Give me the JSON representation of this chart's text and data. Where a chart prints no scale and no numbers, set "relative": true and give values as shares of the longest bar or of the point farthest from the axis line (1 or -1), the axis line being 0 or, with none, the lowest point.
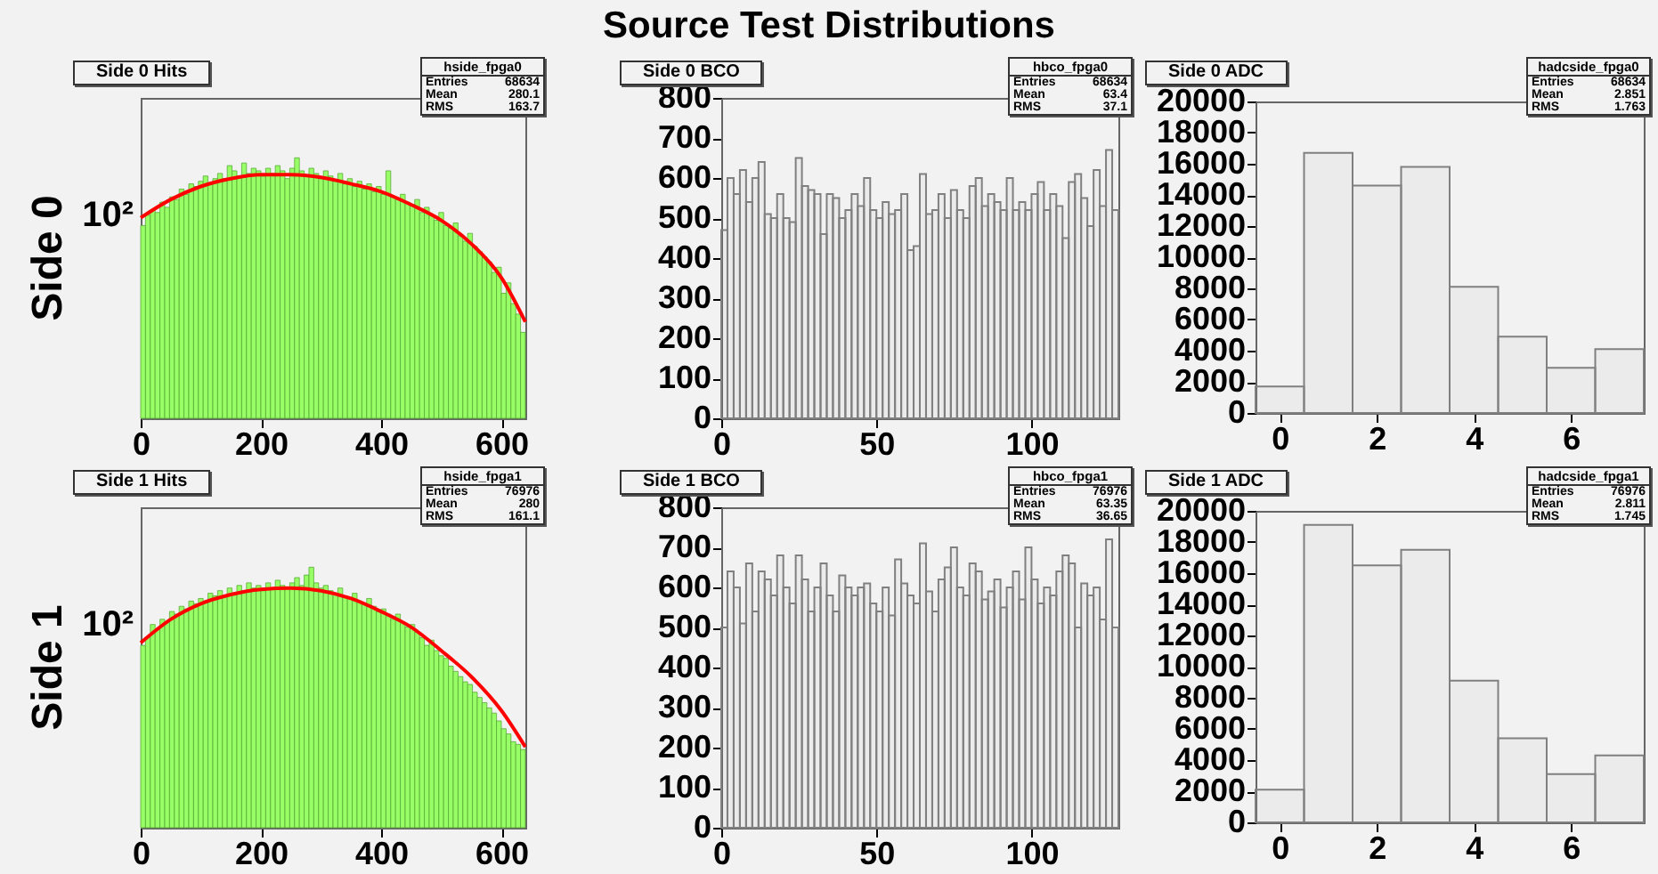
{
  "chart_data": [
    {
      "type": "other",
      "title": "Source Test Distributions"
    },
    {
      "type": "histogram",
      "title": "Side 0 Hits",
      "ylabel": "Side 0",
      "relative": true,
      "xlim": [
        0,
        640
      ],
      "xticks": [
        0,
        200,
        400,
        600
      ],
      "bins": [
        0,
        8,
        16,
        24,
        32,
        40,
        48,
        56,
        64,
        72,
        80,
        88,
        96,
        104,
        112,
        120,
        128,
        136,
        144,
        152,
        160,
        168,
        176,
        184,
        192,
        200,
        208,
        216,
        224,
        232,
        240,
        248,
        256,
        264,
        272,
        280,
        288,
        296,
        304,
        312,
        320,
        328,
        336,
        344,
        352,
        360,
        368,
        376,
        384,
        392,
        400,
        408,
        416,
        424,
        432,
        440,
        448,
        456,
        464,
        472,
        480,
        488,
        496,
        504,
        512,
        520,
        528,
        536,
        544,
        552,
        560,
        568,
        576,
        584,
        592,
        600,
        608,
        616,
        624,
        632,
        640
      ],
      "series": [
        {
          "color": "#99ff66",
          "values": [
            0.74,
            0.78,
            0.8,
            0.79,
            0.83,
            0.81,
            0.85,
            0.84,
            0.88,
            0.86,
            0.9,
            0.89,
            0.91,
            0.93,
            0.9,
            0.92,
            0.94,
            0.92,
            0.97,
            0.95,
            0.93,
            0.98,
            0.94,
            0.96,
            0.95,
            0.93,
            0.96,
            0.94,
            0.97,
            0.95,
            0.92,
            0.96,
            1,
            0.95,
            0.93,
            0.96,
            0.94,
            0.92,
            0.95,
            0.93,
            0.91,
            0.94,
            0.9,
            0.92,
            0.89,
            0.91,
            0.88,
            0.9,
            0.87,
            0.89,
            0.86,
            0.95,
            0.85,
            0.84,
            0.86,
            0.83,
            0.82,
            0.84,
            0.79,
            0.81,
            0.78,
            0.76,
            0.79,
            0.74,
            0.73,
            0.75,
            0.7,
            0.68,
            0.71,
            0.66,
            0.64,
            0.62,
            0.6,
            0.56,
            0.58,
            0.48,
            0.52,
            0.44,
            0.4,
            0.33
          ]
        },
        {
          "type": "line",
          "color": "#ff0000",
          "x": [
            0,
            50,
            100,
            150,
            200,
            250,
            300,
            350,
            400,
            450,
            500,
            550,
            600,
            640
          ],
          "values": [
            0.77,
            0.84,
            0.89,
            0.92,
            0.935,
            0.935,
            0.925,
            0.9,
            0.87,
            0.82,
            0.76,
            0.67,
            0.54,
            0.37
          ]
        }
      ],
      "annotations": [
        "10²",
        "hside_fpga0",
        "Entries",
        "68634",
        "Mean",
        "280.1",
        "RMS",
        "163.7"
      ]
    },
    {
      "type": "histogram",
      "title": "Side 0 BCO",
      "xlim": [
        0,
        128
      ],
      "xticks": [
        0,
        50,
        100
      ],
      "ylim": [
        0,
        800
      ],
      "yticks": [
        0,
        100,
        200,
        300,
        400,
        500,
        600,
        700,
        800
      ],
      "bins": [
        0,
        2,
        4,
        6,
        8,
        10,
        12,
        14,
        16,
        18,
        20,
        22,
        24,
        26,
        28,
        30,
        32,
        34,
        36,
        38,
        40,
        42,
        44,
        46,
        48,
        50,
        52,
        54,
        56,
        58,
        60,
        62,
        64,
        66,
        68,
        70,
        72,
        74,
        76,
        78,
        80,
        82,
        84,
        86,
        88,
        90,
        92,
        94,
        96,
        98,
        100,
        102,
        104,
        106,
        108,
        110,
        112,
        114,
        116,
        118,
        120,
        122,
        124,
        126,
        128
      ],
      "series": [
        {
          "color": "#808080",
          "values": [
            470,
            600,
            560,
            620,
            540,
            600,
            640,
            510,
            500,
            560,
            500,
            490,
            650,
            580,
            570,
            560,
            460,
            560,
            550,
            500,
            520,
            560,
            530,
            600,
            520,
            500,
            540,
            510,
            520,
            560,
            420,
            430,
            610,
            510,
            520,
            560,
            500,
            570,
            520,
            500,
            580,
            600,
            530,
            560,
            540,
            520,
            600,
            520,
            540,
            520,
            560,
            590,
            520,
            560,
            530,
            450,
            590,
            610,
            550,
            480,
            620,
            530,
            670,
            520
          ]
        }
      ],
      "annotations": [
        "hbco_fpga0",
        "Entries",
        "68634",
        "Mean",
        "63.4",
        "RMS",
        "37.1"
      ]
    },
    {
      "type": "histogram",
      "title": "Side 0 ADC",
      "xlim": [
        -0.5,
        7.5
      ],
      "xticks": [
        0,
        2,
        4,
        6
      ],
      "ylim": [
        0,
        20000
      ],
      "yticks": [
        0,
        2000,
        4000,
        6000,
        8000,
        10000,
        12000,
        14000,
        16000,
        18000,
        20000
      ],
      "bins": [
        -0.5,
        0.5,
        1.5,
        2.5,
        3.5,
        4.5,
        5.5,
        6.5,
        7.5
      ],
      "series": [
        {
          "color": "#808080",
          "values": [
            1700,
            16700,
            14600,
            15800,
            8100,
            4900,
            2900,
            4100
          ]
        }
      ],
      "annotations": [
        "hadcside_fpga0",
        "Entries",
        "68634",
        "Mean",
        "2.851",
        "RMS",
        "1.763"
      ]
    },
    {
      "type": "histogram",
      "title": "Side 1 Hits",
      "ylabel": "Side 1",
      "relative": true,
      "xlim": [
        0,
        640
      ],
      "xticks": [
        0,
        200,
        400,
        600
      ],
      "bins": [
        0,
        8,
        16,
        24,
        32,
        40,
        48,
        56,
        64,
        72,
        80,
        88,
        96,
        104,
        112,
        120,
        128,
        136,
        144,
        152,
        160,
        168,
        176,
        184,
        192,
        200,
        208,
        216,
        224,
        232,
        240,
        248,
        256,
        264,
        272,
        280,
        288,
        296,
        304,
        312,
        320,
        328,
        336,
        344,
        352,
        360,
        368,
        376,
        384,
        392,
        400,
        408,
        416,
        424,
        432,
        440,
        448,
        456,
        464,
        472,
        480,
        488,
        496,
        504,
        512,
        520,
        528,
        536,
        544,
        552,
        560,
        568,
        576,
        584,
        592,
        600,
        608,
        616,
        624,
        632,
        640
      ],
      "series": [
        {
          "color": "#99ff66",
          "values": [
            0.7,
            0.73,
            0.78,
            0.76,
            0.8,
            0.79,
            0.83,
            0.82,
            0.85,
            0.84,
            0.87,
            0.86,
            0.88,
            0.87,
            0.9,
            0.89,
            0.91,
            0.89,
            0.92,
            0.9,
            0.93,
            0.91,
            0.94,
            0.92,
            0.93,
            0.91,
            0.94,
            0.92,
            0.95,
            0.93,
            0.92,
            0.94,
            0.96,
            0.93,
            0.97,
            1,
            0.94,
            0.92,
            0.93,
            0.91,
            0.9,
            0.92,
            0.89,
            0.88,
            0.9,
            0.87,
            0.86,
            0.88,
            0.85,
            0.83,
            0.84,
            0.82,
            0.8,
            0.82,
            0.79,
            0.77,
            0.78,
            0.75,
            0.73,
            0.7,
            0.72,
            0.68,
            0.66,
            0.65,
            0.62,
            0.6,
            0.58,
            0.56,
            0.55,
            0.52,
            0.5,
            0.48,
            0.46,
            0.44,
            0.41,
            0.38,
            0.36,
            0.33,
            0.32,
            0.3
          ]
        },
        {
          "type": "line",
          "color": "#ff0000",
          "x": [
            0,
            50,
            100,
            150,
            200,
            250,
            300,
            350,
            400,
            450,
            500,
            550,
            600,
            640
          ],
          "values": [
            0.71,
            0.8,
            0.86,
            0.895,
            0.915,
            0.92,
            0.91,
            0.88,
            0.83,
            0.77,
            0.68,
            0.58,
            0.45,
            0.31
          ]
        }
      ],
      "annotations": [
        "10²",
        "hside_fpga1",
        "Entries",
        "76976",
        "Mean",
        "280",
        "RMS",
        "161.1"
      ]
    },
    {
      "type": "histogram",
      "title": "Side 1 BCO",
      "xlim": [
        0,
        128
      ],
      "xticks": [
        0,
        50,
        100
      ],
      "ylim": [
        0,
        800
      ],
      "yticks": [
        0,
        100,
        200,
        300,
        400,
        500,
        600,
        700,
        800
      ],
      "bins": [
        0,
        2,
        4,
        6,
        8,
        10,
        12,
        14,
        16,
        18,
        20,
        22,
        24,
        26,
        28,
        30,
        32,
        34,
        36,
        38,
        40,
        42,
        44,
        46,
        48,
        50,
        52,
        54,
        56,
        58,
        60,
        62,
        64,
        66,
        68,
        70,
        72,
        74,
        76,
        78,
        80,
        82,
        84,
        86,
        88,
        90,
        92,
        94,
        96,
        98,
        100,
        102,
        104,
        106,
        108,
        110,
        112,
        114,
        116,
        118,
        120,
        122,
        124,
        126,
        128
      ],
      "series": [
        {
          "color": "#808080",
          "values": [
            500,
            640,
            600,
            510,
            660,
            540,
            640,
            620,
            580,
            680,
            600,
            560,
            680,
            620,
            540,
            600,
            660,
            580,
            540,
            630,
            600,
            580,
            600,
            610,
            560,
            540,
            600,
            530,
            670,
            610,
            580,
            560,
            710,
            590,
            540,
            620,
            650,
            700,
            600,
            580,
            660,
            640,
            570,
            590,
            620,
            550,
            600,
            640,
            570,
            700,
            620,
            560,
            600,
            580,
            640,
            680,
            660,
            500,
            610,
            580,
            600,
            520,
            720,
            500
          ]
        }
      ],
      "annotations": [
        "hbco_fpga1",
        "Entries",
        "76976",
        "Mean",
        "63.35",
        "RMS",
        "36.65"
      ]
    },
    {
      "type": "histogram",
      "title": "Side 1 ADC",
      "xlim": [
        -0.5,
        7.5
      ],
      "xticks": [
        0,
        2,
        4,
        6
      ],
      "ylim": [
        0,
        20000
      ],
      "yticks": [
        0,
        2000,
        4000,
        6000,
        8000,
        10000,
        12000,
        14000,
        16000,
        18000,
        20000
      ],
      "bins": [
        -0.5,
        0.5,
        1.5,
        2.5,
        3.5,
        4.5,
        5.5,
        6.5,
        7.5
      ],
      "series": [
        {
          "color": "#808080",
          "values": [
            2100,
            19100,
            16500,
            17500,
            9100,
            5400,
            3100,
            4300
          ]
        }
      ],
      "annotations": [
        "hadcside_fpga1",
        "Entries",
        "76976",
        "Mean",
        "2.811",
        "RMS",
        "1.745"
      ]
    }
  ]
}
